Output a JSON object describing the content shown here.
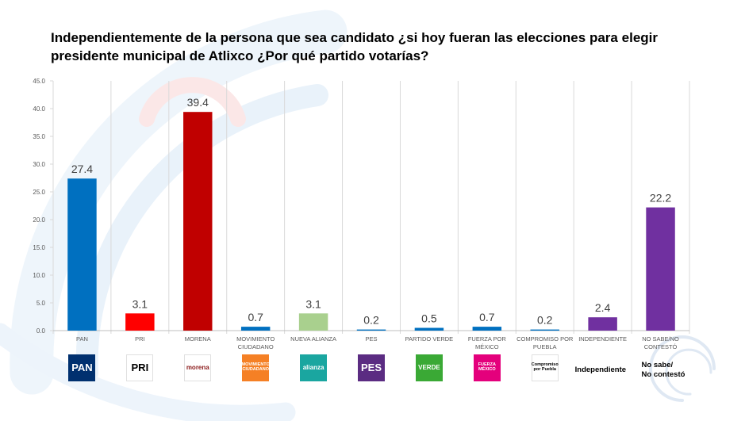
{
  "chart_data": {
    "type": "bar",
    "title": "Independientemente de la persona que sea candidato ¿si hoy fueran las elecciones para elegir presidente municipal de Atlixco ¿Por qué partido votarías?",
    "categories": [
      "PAN",
      "PRI",
      "MORENA",
      "MOVIMIENTO CIUDADANO",
      "NUEVA ALIANZA",
      "PES",
      "PARTIDO VERDE",
      "FUERZA POR MÉXICO",
      "COMPROMISO POR PUEBLA",
      "INDEPENDIENTE",
      "NO SABE/NO CONTESTÓ"
    ],
    "category_lines": [
      [
        "PAN"
      ],
      [
        "PRI"
      ],
      [
        "MORENA"
      ],
      [
        "MOVIMIENTO",
        "CIUDADANO"
      ],
      [
        "NUEVA ALIANZA"
      ],
      [
        "PES"
      ],
      [
        "PARTIDO VERDE"
      ],
      [
        "FUERZA POR",
        "MÉXICO"
      ],
      [
        "COMPROMISO POR",
        "PUEBLA"
      ],
      [
        "INDEPENDIENTE"
      ],
      [
        "NO SABE/NO",
        "CONTESTÓ"
      ]
    ],
    "values": [
      27.4,
      3.1,
      39.4,
      0.7,
      3.1,
      0.2,
      0.5,
      0.7,
      0.2,
      2.4,
      22.2
    ],
    "value_labels": [
      "27.4",
      "3.1",
      "39.4",
      "0.7",
      "3.1",
      "0.2",
      "0.5",
      "0.7",
      "0.2",
      "2.4",
      "22.2"
    ],
    "bar_colors": [
      "#0070c0",
      "#ff0000",
      "#c00000",
      "#0070c0",
      "#a9d08e",
      "#0070c0",
      "#0070c0",
      "#0070c0",
      "#0070c0",
      "#7030a0",
      "#7030a0"
    ],
    "ylim": [
      0,
      45
    ],
    "yticks": [
      "0.0",
      "5.0",
      "10.0",
      "15.0",
      "20.0",
      "25.0",
      "30.0",
      "35.0",
      "40.0",
      "45.0"
    ],
    "grid": true,
    "legend": "none"
  },
  "logos": [
    {
      "name": "pan-logo",
      "text": "PAN",
      "color": "#00306f",
      "fg": "#ffffff"
    },
    {
      "name": "pri-logo",
      "text": "PRI",
      "color": "#ffffff",
      "fg": "#000000"
    },
    {
      "name": "morena-logo",
      "text": "morena",
      "color": "#ffffff",
      "fg": "#8b1a1a"
    },
    {
      "name": "movimiento-ciudadano-logo",
      "text": "MOVIMIENTO CIUDADANO",
      "color": "#f58025",
      "fg": "#ffffff"
    },
    {
      "name": "nueva-alianza-logo",
      "text": "alianza",
      "color": "#1aa6a0",
      "fg": "#ffffff"
    },
    {
      "name": "pes-logo",
      "text": "PES",
      "color": "#5b2c82",
      "fg": "#ffffff"
    },
    {
      "name": "partido-verde-logo",
      "text": "VERDE",
      "color": "#3aa935",
      "fg": "#ffffff"
    },
    {
      "name": "fuerza-por-mexico-logo",
      "text": "FUERZA MÉXICO",
      "color": "#e4007c",
      "fg": "#ffffff"
    },
    {
      "name": "compromiso-por-puebla-logo",
      "text": "Compromiso por Puebla",
      "color": "#ffffff",
      "fg": "#000000"
    }
  ],
  "logo_texts": {
    "independiente": "Independiente",
    "no_sabe_line1": "No sabe/",
    "no_sabe_line2": "No contestó"
  },
  "colors": {
    "axis_text": "#595959",
    "gridline": "#d9d9d9",
    "value_text": "#404040"
  }
}
